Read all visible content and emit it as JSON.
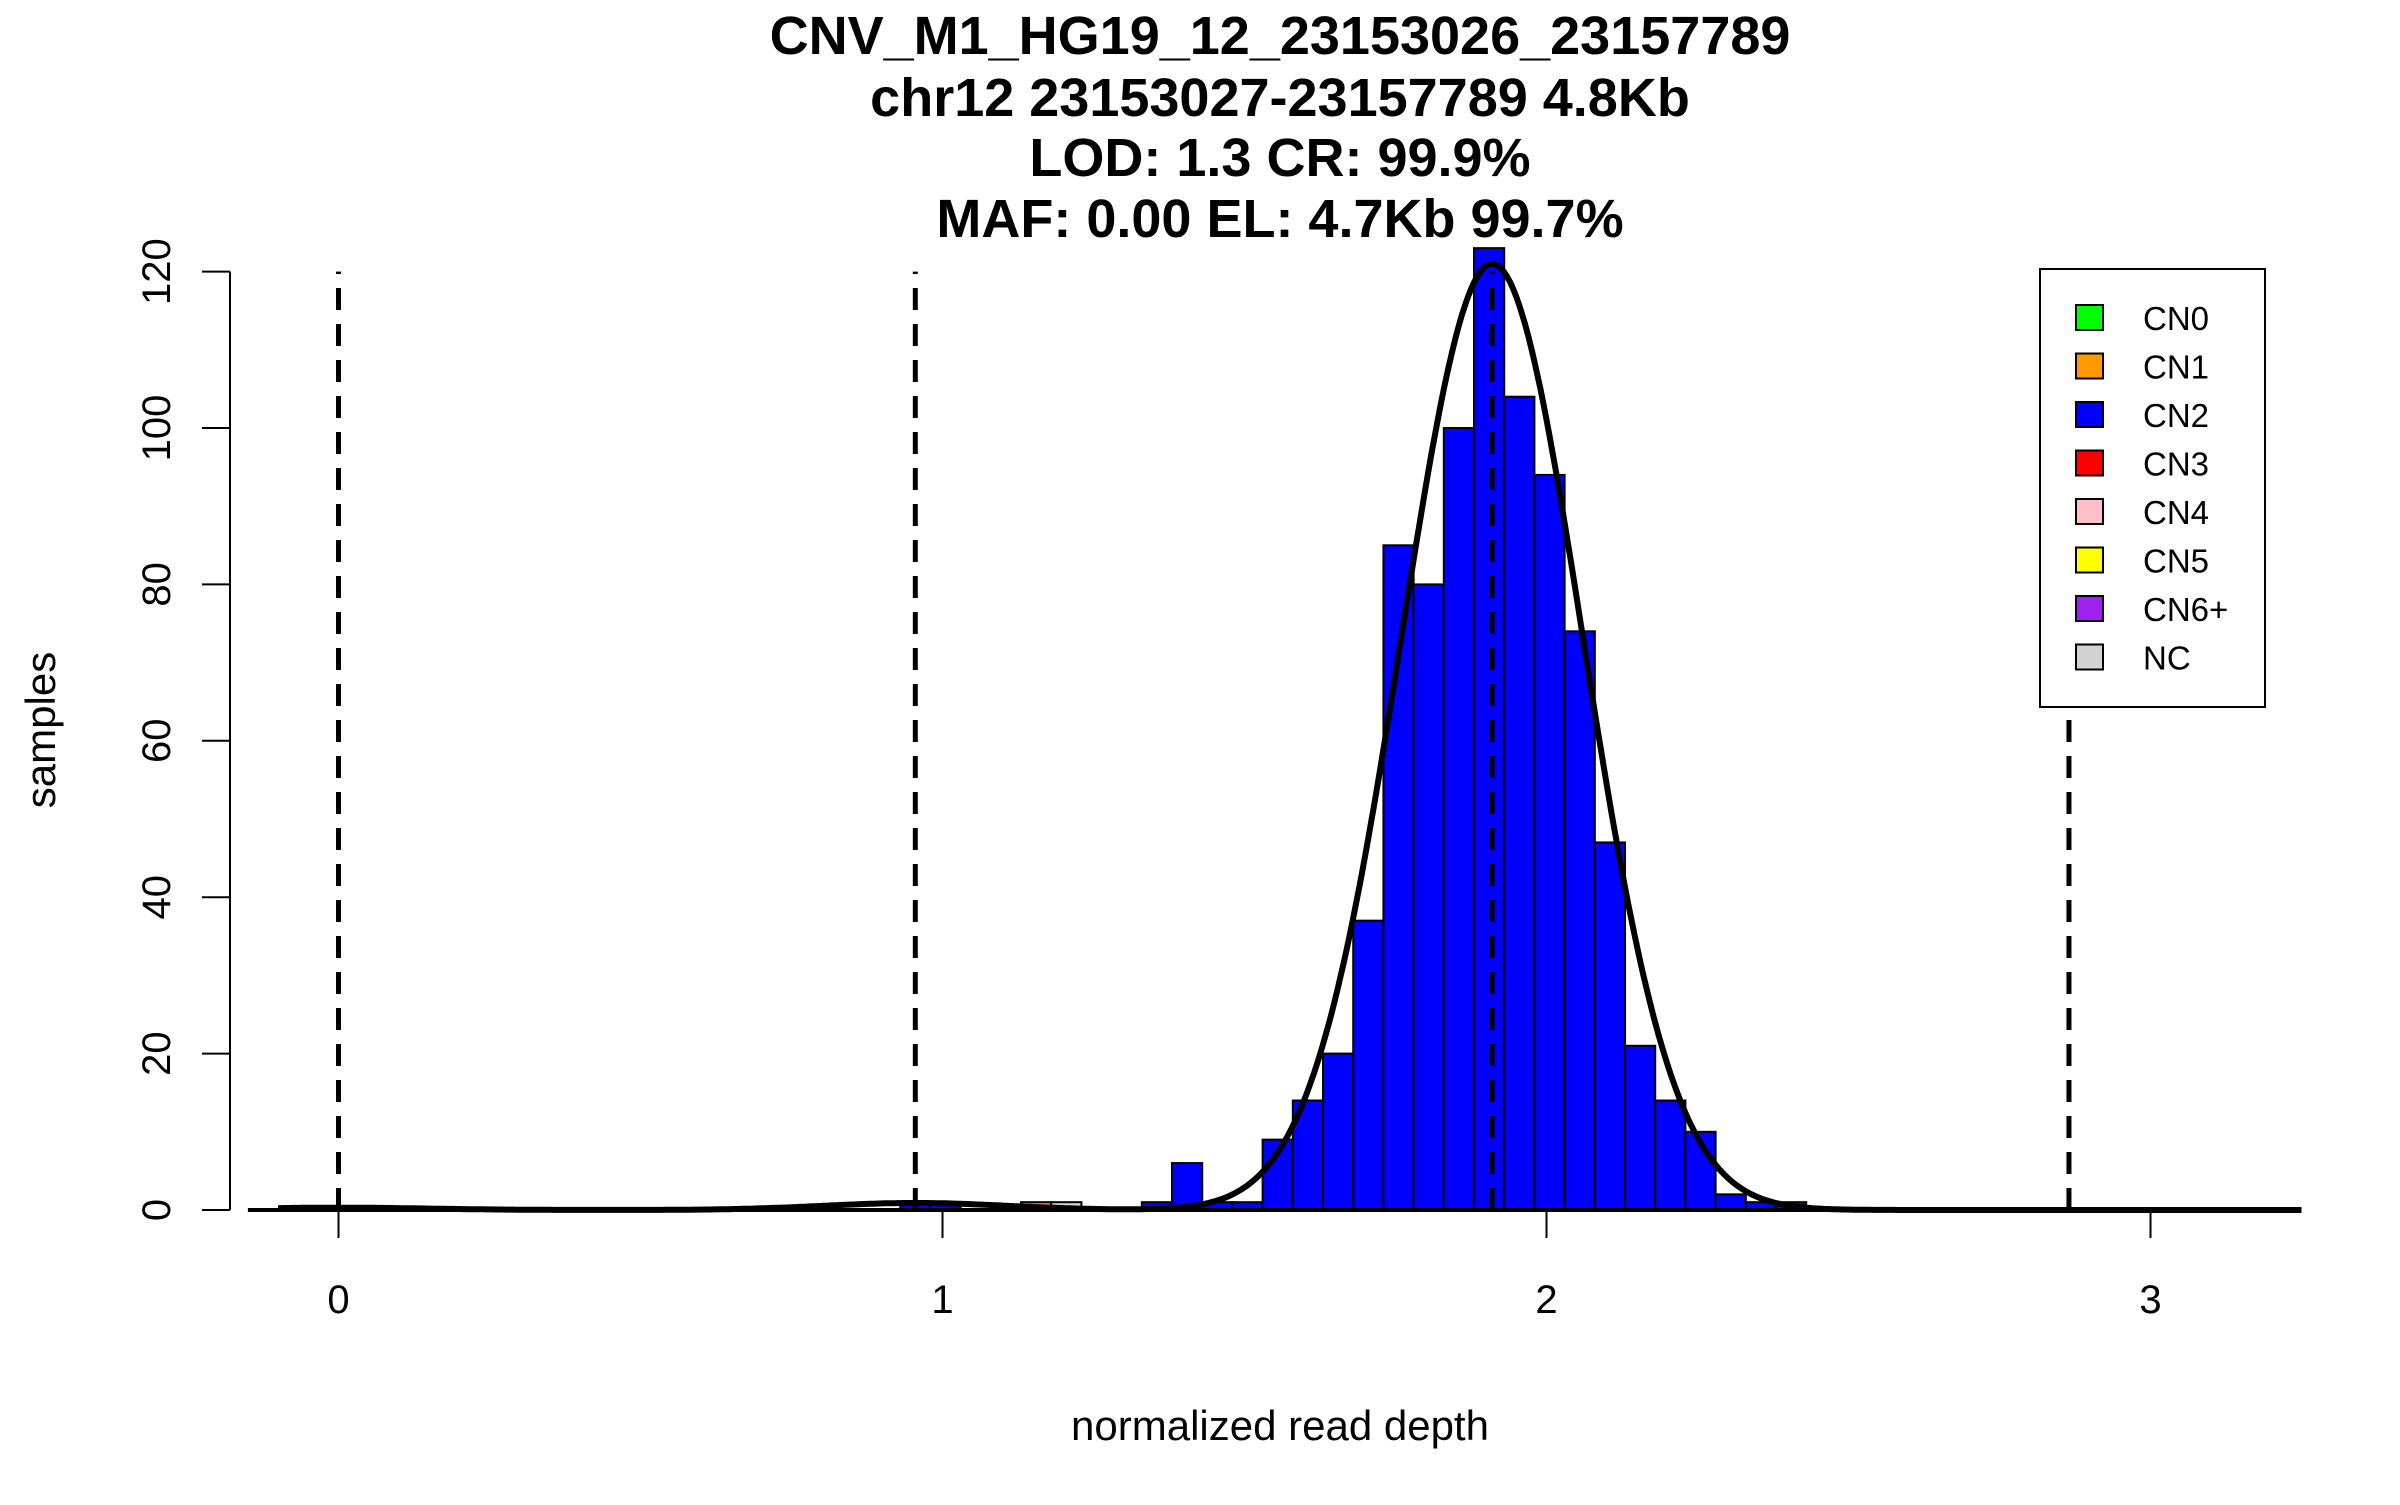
{
  "chart_data": {
    "type": "bar",
    "title_lines": [
      "CNV_M1_HG19_12_23153026_23157789",
      "chr12 23153027-23157789 4.8Kb",
      "LOD: 1.3 CR: 99.9%",
      "MAF: 0.00 EL: 4.7Kb 99.7%"
    ],
    "xlabel": "normalized read depth",
    "ylabel": "samples",
    "xlim": [
      -0.15,
      3.25
    ],
    "ylim": [
      0,
      120
    ],
    "xticks": [
      "0",
      "1",
      "2",
      "3"
    ],
    "yticks": [
      "0",
      "20",
      "40",
      "60",
      "80",
      "100",
      "120"
    ],
    "bin_width": 0.05,
    "bins": [
      {
        "x0": 0.93,
        "count": 1,
        "cn": "CN2"
      },
      {
        "x0": 0.98,
        "count": 1,
        "cn": "CN2"
      },
      {
        "x0": 1.13,
        "count": 1,
        "cn": "CN1"
      },
      {
        "x0": 1.18,
        "count": 1,
        "cn": "NC"
      },
      {
        "x0": 1.33,
        "count": 1,
        "cn": "CN2"
      },
      {
        "x0": 1.38,
        "count": 6,
        "cn": "CN2"
      },
      {
        "x0": 1.43,
        "count": 1,
        "cn": "CN2"
      },
      {
        "x0": 1.48,
        "count": 1,
        "cn": "CN2"
      },
      {
        "x0": 1.53,
        "count": 9,
        "cn": "CN2"
      },
      {
        "x0": 1.58,
        "count": 14,
        "cn": "CN2"
      },
      {
        "x0": 1.63,
        "count": 20,
        "cn": "CN2"
      },
      {
        "x0": 1.68,
        "count": 37,
        "cn": "CN2"
      },
      {
        "x0": 1.73,
        "count": 85,
        "cn": "CN2"
      },
      {
        "x0": 1.78,
        "count": 80,
        "cn": "CN2"
      },
      {
        "x0": 1.83,
        "count": 100,
        "cn": "CN2"
      },
      {
        "x0": 1.88,
        "count": 123,
        "cn": "CN2"
      },
      {
        "x0": 1.93,
        "count": 104,
        "cn": "CN2"
      },
      {
        "x0": 1.98,
        "count": 94,
        "cn": "CN2"
      },
      {
        "x0": 2.03,
        "count": 74,
        "cn": "CN2"
      },
      {
        "x0": 2.08,
        "count": 47,
        "cn": "CN2"
      },
      {
        "x0": 2.13,
        "count": 21,
        "cn": "CN2"
      },
      {
        "x0": 2.18,
        "count": 14,
        "cn": "CN2"
      },
      {
        "x0": 2.23,
        "count": 10,
        "cn": "CN2"
      },
      {
        "x0": 2.28,
        "count": 2,
        "cn": "CN2"
      },
      {
        "x0": 2.33,
        "count": 1,
        "cn": "CN2"
      },
      {
        "x0": 2.38,
        "count": 1,
        "cn": "CN2"
      }
    ],
    "cn_thresholds": [
      0,
      0.955,
      1.91,
      2.865
    ],
    "fit_curve": [
      {
        "mean": 0,
        "sd": 0.15,
        "peak": 0.3
      },
      {
        "mean": 0.955,
        "sd": 0.15,
        "peak": 0.9
      },
      {
        "mean": 1.91,
        "sd": 0.15,
        "peak": 121
      }
    ],
    "legend_position": "top-right",
    "legend": [
      {
        "label": "CN0",
        "color": "#00ff00"
      },
      {
        "label": "CN1",
        "color": "#ff9900"
      },
      {
        "label": "CN2",
        "color": "#0000ff"
      },
      {
        "label": "CN3",
        "color": "#ff0000"
      },
      {
        "label": "CN4",
        "color": "#ffc0cb"
      },
      {
        "label": "CN5",
        "color": "#ffff00"
      },
      {
        "label": "CN6+",
        "color": "#a020f0"
      },
      {
        "label": "NC",
        "color": "#d3d3d3"
      }
    ]
  }
}
